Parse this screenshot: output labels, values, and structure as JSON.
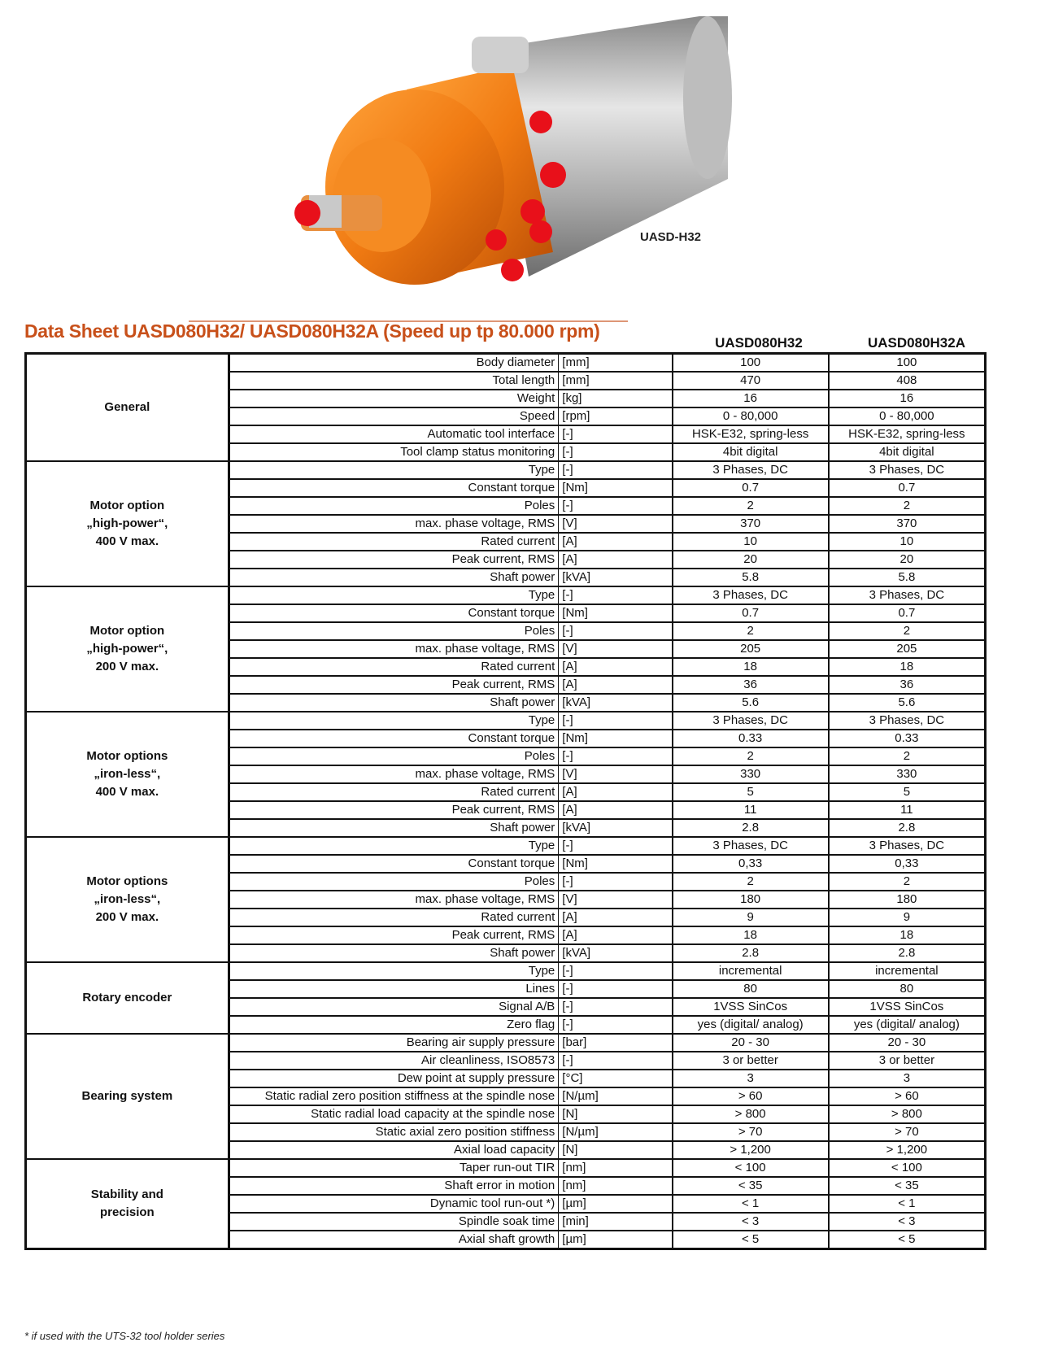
{
  "product_caption": "UASD-H32",
  "title": "Data Sheet UASD080H32/ UASD080H32A (Speed up tp 80.000 rpm)",
  "columns": [
    "UASD080H32",
    "UASD080H32A"
  ],
  "colors": {
    "title": "#c8501a",
    "housing": "#f07a12",
    "fittings": "#e8101a"
  },
  "groups": [
    {
      "label": "General",
      "rows": [
        [
          "Body diameter",
          "[mm]",
          "100",
          "100"
        ],
        [
          "Total length",
          "[mm]",
          "470",
          "408"
        ],
        [
          "Weight",
          "[kg]",
          "16",
          "16"
        ],
        [
          "Speed",
          "[rpm]",
          "0 - 80,000",
          "0 - 80,000"
        ],
        [
          "Automatic tool interface",
          "[-]",
          "HSK-E32, spring-less",
          "HSK-E32, spring-less"
        ],
        [
          "Tool clamp status monitoring",
          "[-]",
          "4bit digital",
          "4bit digital"
        ]
      ]
    },
    {
      "label": "Motor option\n„high-power“,\n400 V max.",
      "rows": [
        [
          "Type",
          "[-]",
          "3 Phases, DC",
          "3 Phases, DC"
        ],
        [
          "Constant torque",
          "[Nm]",
          "0.7",
          "0.7"
        ],
        [
          "Poles",
          "[-]",
          "2",
          "2"
        ],
        [
          "max. phase voltage, RMS",
          "[V]",
          "370",
          "370"
        ],
        [
          "Rated current",
          "[A]",
          "10",
          "10"
        ],
        [
          "Peak current, RMS",
          "[A]",
          "20",
          "20"
        ],
        [
          "Shaft power",
          "[kVA]",
          "5.8",
          "5.8"
        ]
      ]
    },
    {
      "label": "Motor option\n„high-power“,\n200 V max.",
      "rows": [
        [
          "Type",
          "[-]",
          "3 Phases, DC",
          "3 Phases, DC"
        ],
        [
          "Constant torque",
          "[Nm]",
          "0.7",
          "0.7"
        ],
        [
          "Poles",
          "[-]",
          "2",
          "2"
        ],
        [
          "max. phase voltage, RMS",
          "[V]",
          "205",
          "205"
        ],
        [
          "Rated current",
          "[A]",
          "18",
          "18"
        ],
        [
          "Peak current, RMS",
          "[A]",
          "36",
          "36"
        ],
        [
          "Shaft power",
          "[kVA]",
          "5.6",
          "5.6"
        ]
      ]
    },
    {
      "label": "Motor options\n„iron-less“,\n400 V max.",
      "rows": [
        [
          "Type",
          "[-]",
          "3 Phases, DC",
          "3 Phases, DC"
        ],
        [
          "Constant torque",
          "[Nm]",
          "0.33",
          "0.33"
        ],
        [
          "Poles",
          "[-]",
          "2",
          "2"
        ],
        [
          "max. phase voltage, RMS",
          "[V]",
          "330",
          "330"
        ],
        [
          "Rated current",
          "[A]",
          "5",
          "5"
        ],
        [
          "Peak current, RMS",
          "[A]",
          "11",
          "11"
        ],
        [
          "Shaft power",
          "[kVA]",
          "2.8",
          "2.8"
        ]
      ]
    },
    {
      "label": "Motor options\n„iron-less“,\n200 V max.",
      "rows": [
        [
          "Type",
          "[-]",
          "3 Phases, DC",
          "3 Phases, DC"
        ],
        [
          "Constant torque",
          "[Nm]",
          "0,33",
          "0,33"
        ],
        [
          "Poles",
          "[-]",
          "2",
          "2"
        ],
        [
          "max. phase voltage, RMS",
          "[V]",
          "180",
          "180"
        ],
        [
          "Rated current",
          "[A]",
          "9",
          "9"
        ],
        [
          "Peak current, RMS",
          "[A]",
          "18",
          "18"
        ],
        [
          "Shaft power",
          "[kVA]",
          "2.8",
          "2.8"
        ]
      ]
    },
    {
      "label": "Rotary encoder",
      "rows": [
        [
          "Type",
          "[-]",
          "incremental",
          "incremental"
        ],
        [
          "Lines",
          "[-]",
          "80",
          "80"
        ],
        [
          "Signal A/B",
          "[-]",
          "1VSS SinCos",
          "1VSS SinCos"
        ],
        [
          "Zero flag",
          "[-]",
          "yes (digital/ analog)",
          "yes (digital/ analog)"
        ]
      ]
    },
    {
      "label": "Bearing system",
      "rows": [
        [
          "Bearing air supply pressure",
          "[bar]",
          "20 - 30",
          "20 - 30"
        ],
        [
          "Air cleanliness, ISO8573",
          "[-]",
          "3 or better",
          "3 or better"
        ],
        [
          "Dew point at supply pressure",
          "[°C]",
          "3",
          "3"
        ],
        [
          "Static radial zero position stiffness at the spindle nose",
          "[N/µm]",
          "> 60",
          "> 60"
        ],
        [
          "Static radial load capacity at the spindle nose",
          "[N]",
          "> 800",
          "> 800"
        ],
        [
          "Static axial zero position stiffness",
          "[N/µm]",
          "> 70",
          "> 70"
        ],
        [
          "Axial load capacity",
          "[N]",
          "> 1,200",
          "> 1,200"
        ]
      ]
    },
    {
      "label": "Stability and\nprecision",
      "rows": [
        [
          "Taper run-out TIR",
          "[nm]",
          "< 100",
          "< 100"
        ],
        [
          "Shaft error in motion",
          "[nm]",
          "< 35",
          "< 35"
        ],
        [
          "Dynamic tool run-out *)",
          "[µm]",
          "< 1",
          "< 1"
        ],
        [
          "Spindle soak time",
          "[min]",
          "< 3",
          "< 3"
        ],
        [
          "Axial shaft growth",
          "[µm]",
          "< 5",
          "< 5"
        ]
      ]
    }
  ],
  "footnote": "* if used with the UTS-32 tool holder series"
}
